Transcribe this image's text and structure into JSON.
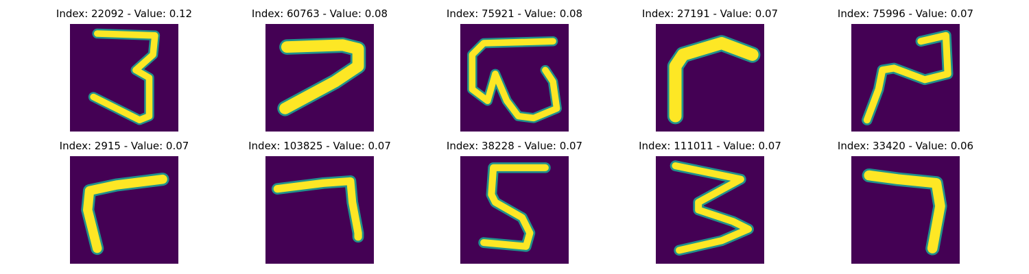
{
  "figure": {
    "colormap": {
      "background": "#440154",
      "edge": "#21918c",
      "stroke": "#fde725"
    },
    "panels": [
      {
        "title": "Index: 22092 - Value: 0.12",
        "glyph": "digit-3-icon"
      },
      {
        "title": "Index: 60763 - Value: 0.08",
        "glyph": "digit-7-icon"
      },
      {
        "title": "Index: 75921 - Value: 0.08",
        "glyph": "digit-3-rotated-icon"
      },
      {
        "title": "Index: 27191 - Value: 0.07",
        "glyph": "digit-7-icon"
      },
      {
        "title": "Index: 75996 - Value: 0.07",
        "glyph": "digit-2-icon"
      },
      {
        "title": "Index: 2915 - Value: 0.07",
        "glyph": "digit-7-icon"
      },
      {
        "title": "Index: 103825 - Value: 0.07",
        "glyph": "digit-7-icon"
      },
      {
        "title": "Index: 38228 - Value: 0.07",
        "glyph": "digit-5-icon"
      },
      {
        "title": "Index: 111011 - Value: 0.07",
        "glyph": "digit-3-icon"
      },
      {
        "title": "Index: 33420 - Value: 0.06",
        "glyph": "digit-7-icon"
      }
    ]
  }
}
